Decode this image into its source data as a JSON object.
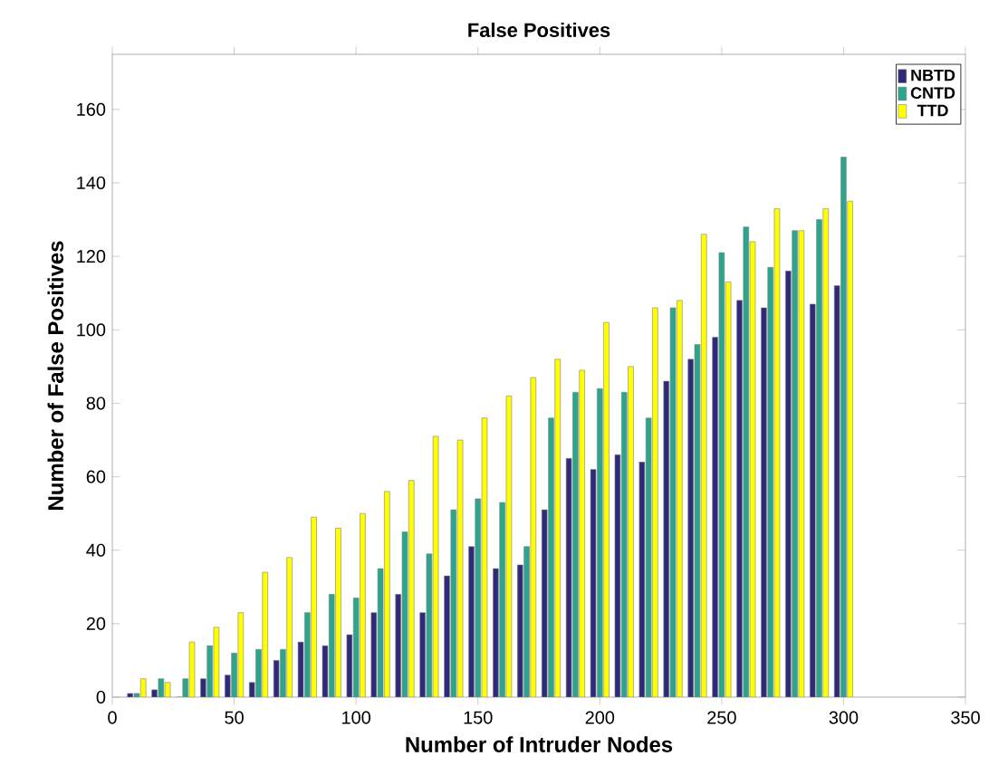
{
  "chart_data": {
    "type": "bar",
    "title": "False Positives",
    "xlabel": "Number of Intruder Nodes",
    "ylabel": "Number of False Positives",
    "x": [
      10,
      20,
      30,
      40,
      50,
      60,
      70,
      80,
      90,
      100,
      110,
      120,
      130,
      140,
      150,
      160,
      170,
      180,
      190,
      200,
      210,
      220,
      230,
      240,
      250,
      260,
      270,
      280,
      290,
      300
    ],
    "series": [
      {
        "name": "NBTD",
        "color": "#2e2a7a",
        "values": [
          1,
          2,
          0,
          5,
          6,
          4,
          10,
          15,
          14,
          17,
          23,
          28,
          23,
          33,
          41,
          35,
          36,
          51,
          65,
          62,
          66,
          64,
          86,
          92,
          98,
          108,
          106,
          116,
          107,
          112
        ]
      },
      {
        "name": "CNTD",
        "color": "#2ca58d",
        "values": [
          1,
          5,
          5,
          14,
          12,
          13,
          13,
          23,
          28,
          27,
          35,
          45,
          39,
          51,
          54,
          53,
          41,
          76,
          83,
          84,
          83,
          76,
          106,
          96,
          121,
          128,
          117,
          127,
          130,
          147
        ]
      },
      {
        "name": "TTD",
        "color": "#ffff00",
        "values": [
          5,
          4,
          15,
          19,
          23,
          34,
          38,
          49,
          46,
          50,
          56,
          59,
          71,
          70,
          76,
          82,
          87,
          92,
          89,
          102,
          90,
          106,
          108,
          126,
          113,
          124,
          133,
          127,
          133,
          135
        ]
      }
    ],
    "xlim": [
      0,
      350
    ],
    "ylim": [
      0,
      175
    ],
    "xticks": [
      0,
      50,
      100,
      150,
      200,
      250,
      300,
      350
    ],
    "yticks": [
      0,
      20,
      40,
      60,
      80,
      100,
      120,
      140,
      160
    ],
    "legend": "top right",
    "grid": false
  }
}
